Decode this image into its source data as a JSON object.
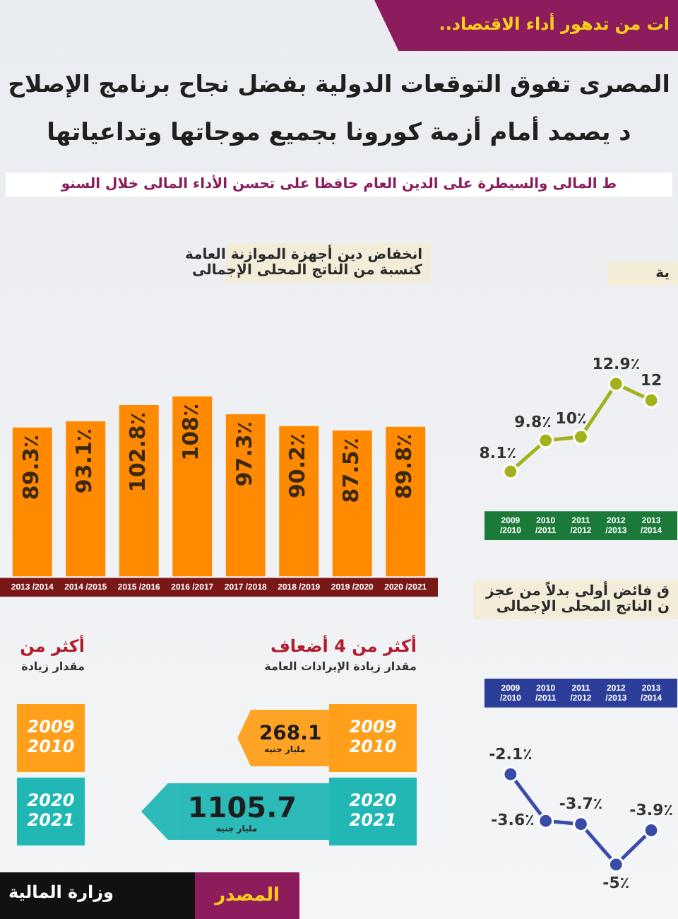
{
  "chart_data": [
    {
      "type": "other",
      "title": "ات من تدهور أداء الاقتصاد..",
      "annotations": [
        "المصرى تفوق التوقعات الدولية بفضل نجاح برنامج الإصلاح",
        "د يصمد أمام أزمة كورونا بجميع موجاتها وتداعياتها",
        "ط المالى والسيطرة على الدين العام حافظا على تحسن الأداء المالى خلال السنو"
      ]
    },
    {
      "type": "bar",
      "title": "انخفاض دين أجهزة الموازنة العامة",
      "subtitle": "كنسبة من الناتج المحلى الإجمالى",
      "categories": [
        "2013 /2014",
        "2014 /2015",
        "2015 /2016",
        "2016 /2017",
        "2017 /2018",
        "2018 /2019",
        "2019 /2020",
        "2020 /2021"
      ],
      "values": [
        89.3,
        93.1,
        102.8,
        108,
        97.3,
        90.2,
        87.5,
        89.8
      ],
      "value_labels": [
        "89.3٪",
        "93.1٪",
        "102.8٪",
        "108٪",
        "97.3٪",
        "90.2٪",
        "87.5٪",
        "89.8٪"
      ],
      "color": "#ff8a00"
    },
    {
      "type": "line",
      "title": "ية",
      "categories": [
        "2009 /2010",
        "2010 /2011",
        "2011 /2012",
        "2012 /2013",
        "2013 /2014"
      ],
      "marker": "circle",
      "series": [
        {
          "color": "#a3b21c",
          "values": [
            8.1,
            9.8,
            10,
            12.9,
            12
          ],
          "value_labels": [
            "8.1٪",
            "9.8٪",
            "10٪",
            "12.9٪",
            "12"
          ]
        }
      ]
    },
    {
      "type": "line",
      "title": "ق فائض أولى بدلاً من عجز",
      "subtitle": "ن الناتج المحلى الإجمالى",
      "categories": [
        "2009 /2010",
        "2010 /2011",
        "2011 /2012",
        "2012 /2013",
        "2013 /2014"
      ],
      "marker": "circle",
      "series": [
        {
          "color": "#3a4aa8",
          "values": [
            -2.1,
            -3.6,
            -3.7,
            -5,
            -3.9
          ],
          "value_labels": [
            "-2.1٪",
            "-3.6٪",
            "-3.7٪",
            "-5٪",
            "-3.9٪"
          ]
        }
      ]
    },
    {
      "type": "other",
      "title": "أكثر من 4 أضعاف",
      "subtitle": "مقدار زيادة الإيرادات العامة",
      "categories": [
        "2009 2010",
        "2020 2021"
      ],
      "values": [
        268.1,
        1105.7
      ],
      "value_labels": [
        "268.1",
        "1105.7"
      ],
      "annotations": [
        "مليار جنيه",
        "مليار جنيه"
      ]
    },
    {
      "type": "other",
      "title": "أكثر من",
      "subtitle": "مقدار زيادة",
      "categories": [
        "2009 2010",
        "2020 2021"
      ],
      "annotations": [
        "المصدر",
        "وزارة المالية"
      ]
    }
  ]
}
